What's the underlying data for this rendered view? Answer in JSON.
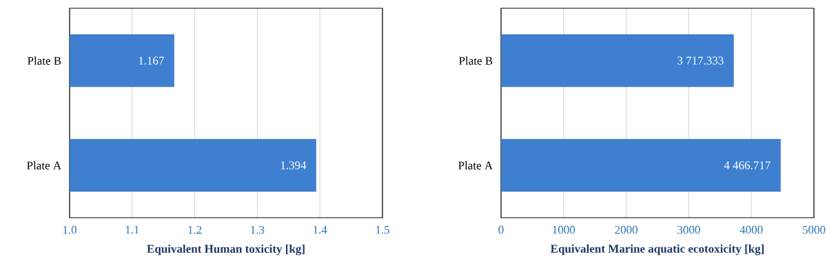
{
  "chart_data": [
    {
      "type": "bar",
      "orientation": "horizontal",
      "categories": [
        "Plate B",
        "Plate A"
      ],
      "values": [
        1.167,
        1.394
      ],
      "value_labels": [
        "1.167",
        "1.394"
      ],
      "color": "#3f7fd0",
      "xlabel": "Equivalent Human toxicity [kg]",
      "xlim": [
        1.0,
        1.5
      ],
      "xticks": [
        {
          "value": 1.0,
          "label": "1.0"
        },
        {
          "value": 1.1,
          "label": "1.1"
        },
        {
          "value": 1.2,
          "label": "1.2"
        },
        {
          "value": 1.3,
          "label": "1.3"
        },
        {
          "value": 1.4,
          "label": "1.4"
        },
        {
          "value": 1.5,
          "label": "1.5"
        }
      ],
      "grid": "x"
    },
    {
      "type": "bar",
      "orientation": "horizontal",
      "categories": [
        "Plate B",
        "Plate A"
      ],
      "values": [
        3717.333,
        4466.717
      ],
      "value_labels": [
        "3 717.333",
        "4 466.717"
      ],
      "color": "#3f7fd0",
      "xlabel": "Equivalent Marine aquatic ecotoxicity [kg]",
      "xlim": [
        0,
        5000
      ],
      "xticks": [
        0,
        1000,
        2000,
        3000,
        4000,
        5000
      ],
      "grid": "x"
    }
  ]
}
